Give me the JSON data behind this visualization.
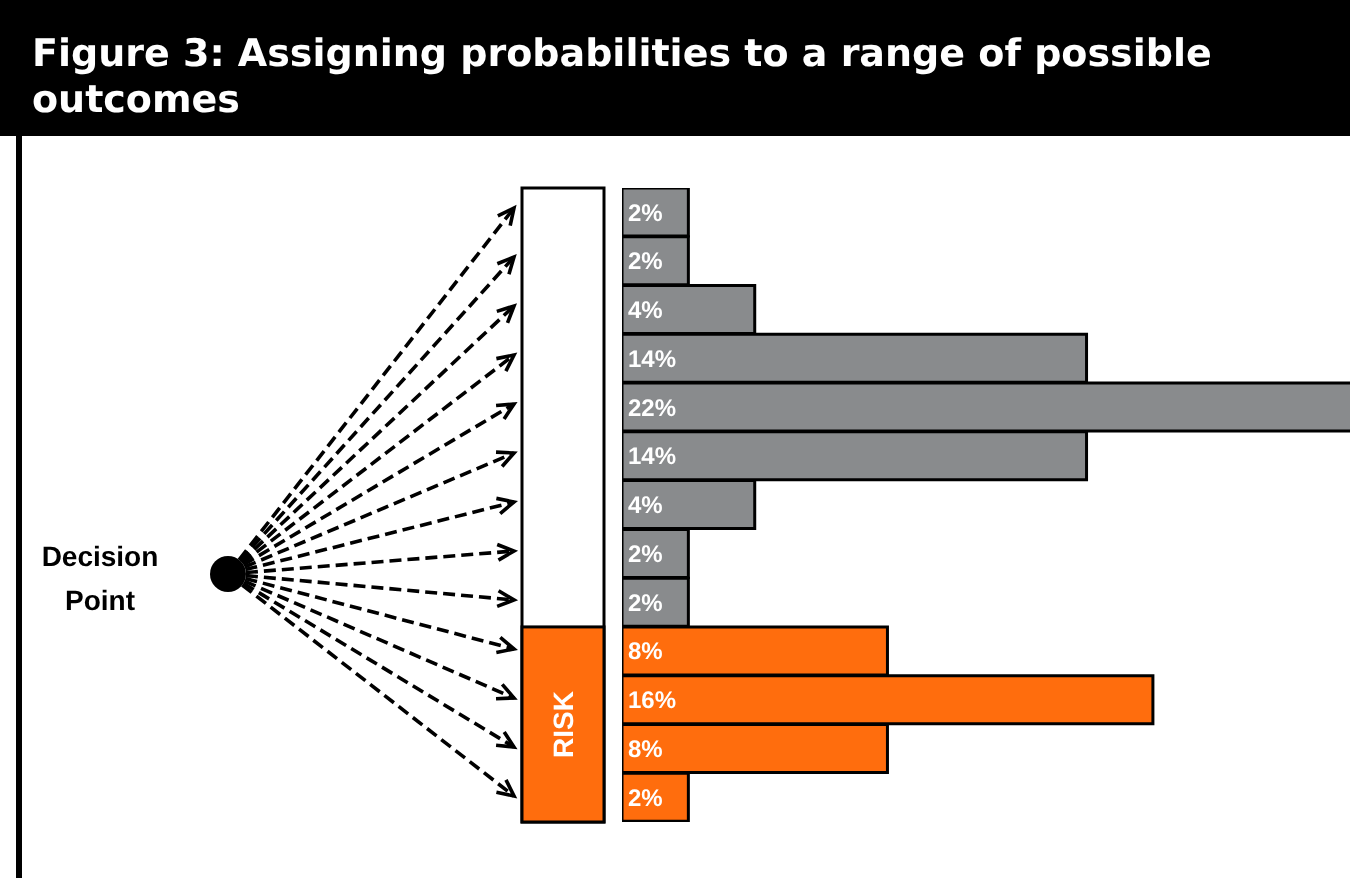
{
  "chart_data": {
    "type": "bar",
    "orientation": "horizontal",
    "title": "Figure 3: Assigning probabilities to a range of possible outcomes",
    "categories": [
      null,
      null,
      null,
      null,
      null,
      null,
      null,
      null,
      null,
      null,
      null,
      null,
      null
    ],
    "values": [
      2,
      2,
      4,
      14,
      22,
      14,
      4,
      2,
      2,
      8,
      16,
      8,
      2
    ],
    "value_labels": [
      "2%",
      "2%",
      "4%",
      "14%",
      "22%",
      "14%",
      "4%",
      "2%",
      "2%",
      "8%",
      "16%",
      "8%",
      "2%"
    ],
    "colors": [
      "#898b8d",
      "#898b8d",
      "#898b8d",
      "#898b8d",
      "#898b8d",
      "#898b8d",
      "#898b8d",
      "#898b8d",
      "#898b8d",
      "#ff6d0d",
      "#ff6d0d",
      "#ff6d0d",
      "#ff6d0d"
    ],
    "tick_labels": false,
    "grid": false,
    "legend": false,
    "annotations": [
      "Decision Point",
      "RISK"
    ]
  }
}
